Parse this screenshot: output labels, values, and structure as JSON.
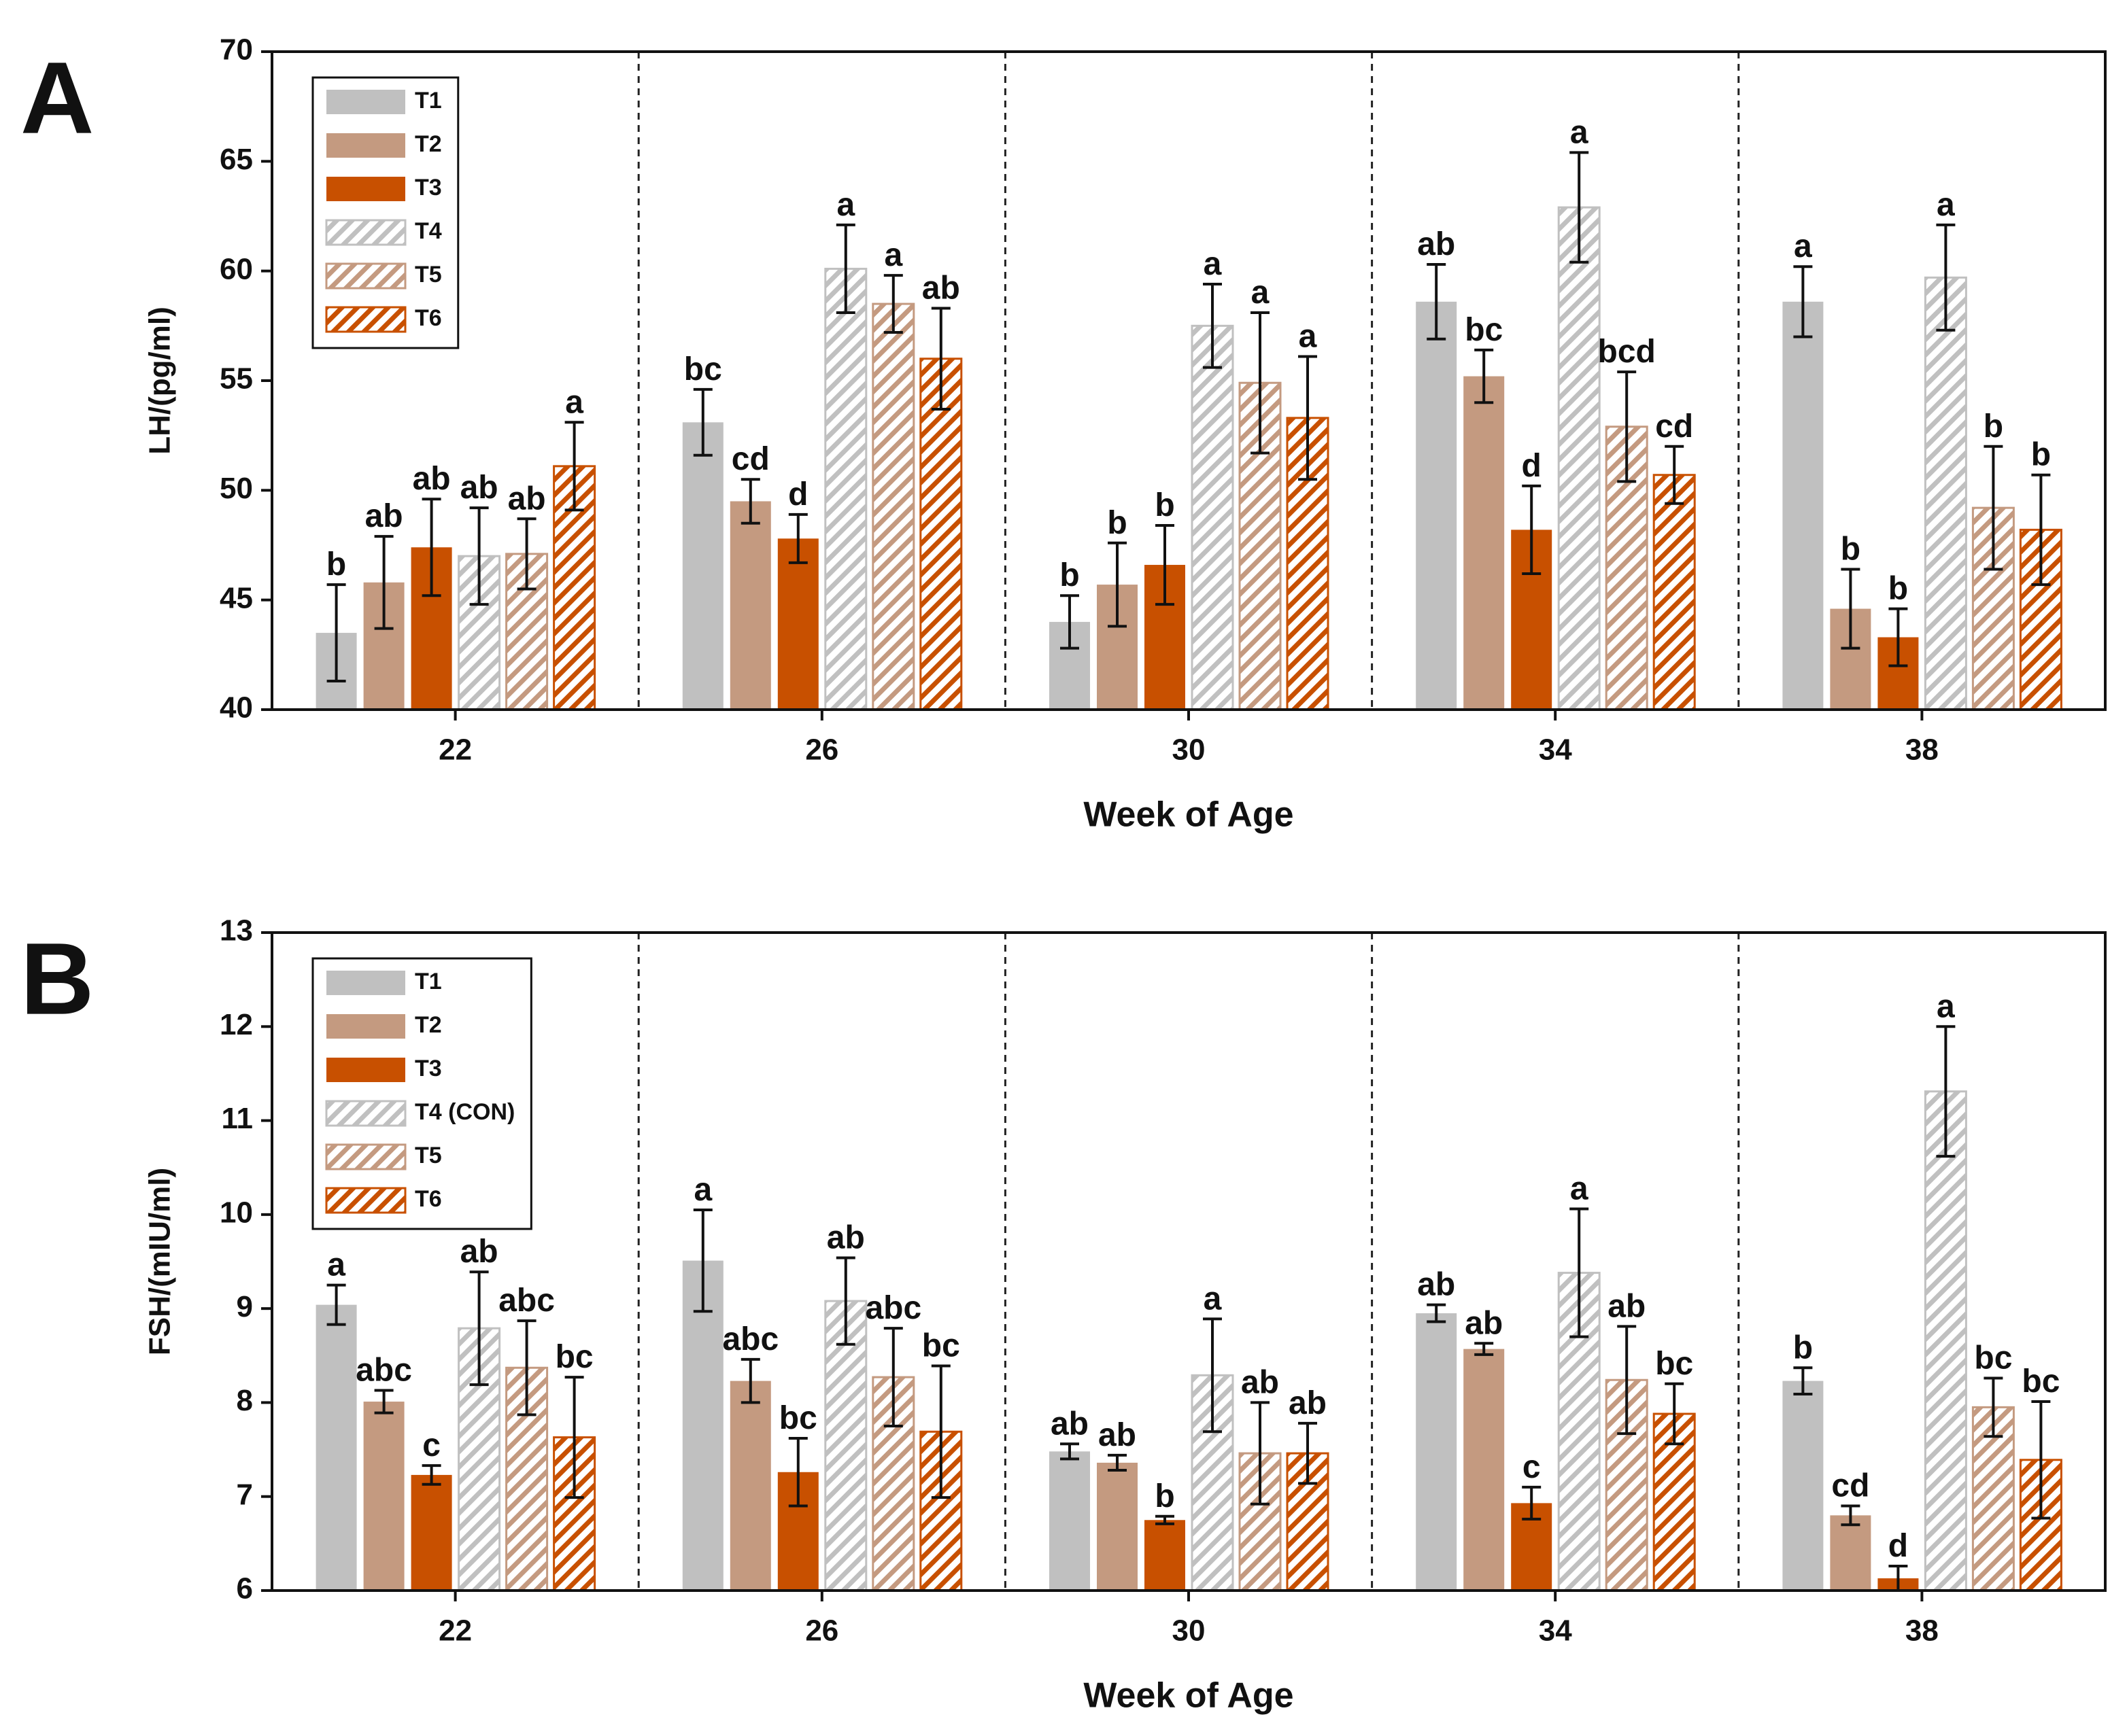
{
  "chart_data": [
    {
      "type": "bar",
      "panel_label": "A",
      "ylabel": "LH/(pg/ml)",
      "xlabel": "Week of Age",
      "categories": [
        "22",
        "26",
        "30",
        "34",
        "38"
      ],
      "ylim": [
        40,
        70
      ],
      "yticks": [
        40,
        45,
        50,
        55,
        60,
        65,
        70
      ],
      "series": [
        {
          "name": "T1",
          "color": "#c0c0c0",
          "hatch": false,
          "values": [
            43.5,
            53.1,
            44.0,
            58.6,
            58.6
          ],
          "errors": [
            2.2,
            1.5,
            1.2,
            1.7,
            1.6
          ],
          "letters": [
            "b",
            "bc",
            "b",
            "ab",
            "a"
          ]
        },
        {
          "name": "T2",
          "color": "#c49a80",
          "hatch": false,
          "values": [
            45.8,
            49.5,
            45.7,
            55.2,
            44.6
          ],
          "errors": [
            2.1,
            1.0,
            1.9,
            1.2,
            1.8
          ],
          "letters": [
            "ab",
            "cd",
            "b",
            "bc",
            "b"
          ]
        },
        {
          "name": "T3",
          "color": "#c85000",
          "hatch": false,
          "values": [
            47.4,
            47.8,
            46.6,
            48.2,
            43.3
          ],
          "errors": [
            2.2,
            1.1,
            1.8,
            2.0,
            1.3
          ],
          "letters": [
            "ab",
            "d",
            "b",
            "d",
            "b"
          ]
        },
        {
          "name": "T4",
          "color": "#c0c0c0",
          "hatch": true,
          "values": [
            47.0,
            60.1,
            57.5,
            62.9,
            59.7
          ],
          "errors": [
            2.2,
            2.0,
            1.9,
            2.5,
            2.4
          ],
          "letters": [
            "ab",
            "a",
            "a",
            "a",
            "a"
          ]
        },
        {
          "name": "T5",
          "color": "#c49a80",
          "hatch": true,
          "values": [
            47.1,
            58.5,
            54.9,
            52.9,
            49.2
          ],
          "errors": [
            1.6,
            1.3,
            3.2,
            2.5,
            2.8
          ],
          "letters": [
            "ab",
            "a",
            "a",
            "bcd",
            "b"
          ]
        },
        {
          "name": "T6",
          "color": "#c85000",
          "hatch": true,
          "values": [
            51.1,
            56.0,
            53.3,
            50.7,
            48.2
          ],
          "errors": [
            2.0,
            2.3,
            2.8,
            1.3,
            2.5
          ],
          "letters": [
            "a",
            "ab",
            "a",
            "cd",
            "b"
          ]
        }
      ]
    },
    {
      "type": "bar",
      "panel_label": "B",
      "ylabel": "FSH/(mIU/ml)",
      "xlabel": "Week of Age",
      "categories": [
        "22",
        "26",
        "30",
        "34",
        "38"
      ],
      "ylim": [
        6,
        13
      ],
      "yticks": [
        6,
        7,
        8,
        9,
        10,
        11,
        12,
        13
      ],
      "series": [
        {
          "name": "T1",
          "color": "#c0c0c0",
          "hatch": false,
          "values": [
            9.04,
            9.51,
            7.48,
            8.95,
            8.23
          ],
          "errors": [
            0.21,
            0.54,
            0.08,
            0.09,
            0.14
          ],
          "letters": [
            "a",
            "a",
            "ab",
            "ab",
            "b"
          ]
        },
        {
          "name": "T2",
          "color": "#c49a80",
          "hatch": false,
          "values": [
            8.01,
            8.23,
            7.36,
            8.57,
            6.8
          ],
          "errors": [
            0.12,
            0.23,
            0.08,
            0.06,
            0.1
          ],
          "letters": [
            "abc",
            "abc",
            "ab",
            "ab",
            "cd"
          ]
        },
        {
          "name": "T3",
          "color": "#c85000",
          "hatch": false,
          "values": [
            7.23,
            7.26,
            6.75,
            6.93,
            6.13
          ],
          "errors": [
            0.1,
            0.36,
            0.04,
            0.17,
            0.13
          ],
          "letters": [
            "c",
            "bc",
            "b",
            "c",
            "d"
          ]
        },
        {
          "name": "T4 (CON)",
          "color": "#c0c0c0",
          "hatch": true,
          "values": [
            8.79,
            9.08,
            8.29,
            9.38,
            11.31
          ],
          "errors": [
            0.6,
            0.46,
            0.6,
            0.68,
            0.69
          ],
          "letters": [
            "ab",
            "ab",
            "a",
            "a",
            "a"
          ]
        },
        {
          "name": "T5",
          "color": "#c49a80",
          "hatch": true,
          "values": [
            8.37,
            8.27,
            7.46,
            8.24,
            7.95
          ],
          "errors": [
            0.5,
            0.52,
            0.54,
            0.57,
            0.31
          ],
          "letters": [
            "abc",
            "abc",
            "ab",
            "ab",
            "bc"
          ]
        },
        {
          "name": "T6",
          "color": "#c85000",
          "hatch": true,
          "values": [
            7.63,
            7.69,
            7.46,
            7.88,
            7.39
          ],
          "errors": [
            0.64,
            0.7,
            0.32,
            0.32,
            0.62
          ],
          "letters": [
            "bc",
            "bc",
            "ab",
            "bc",
            "bc"
          ]
        }
      ]
    }
  ]
}
